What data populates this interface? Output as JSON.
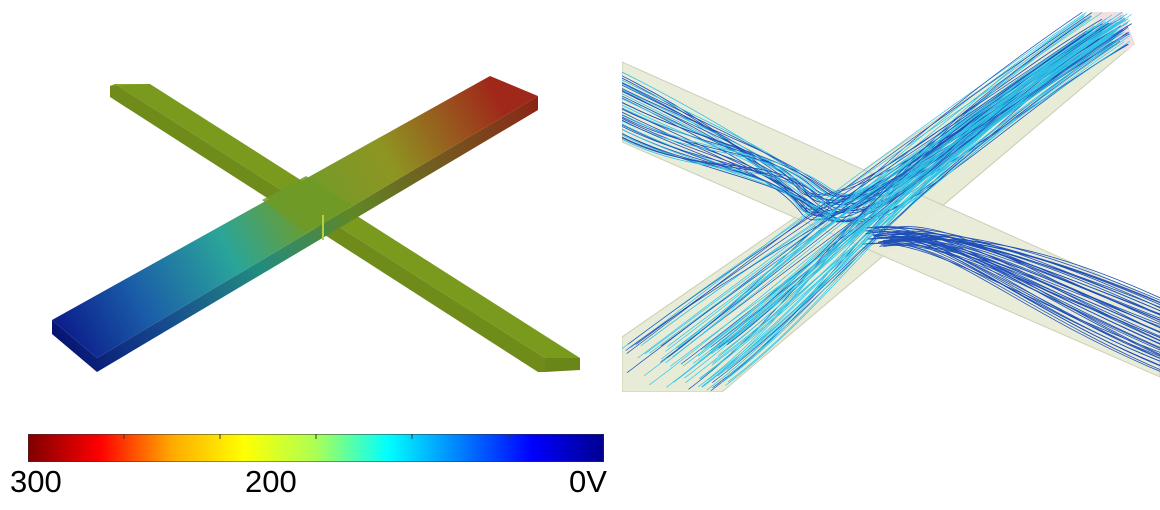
{
  "colorbar": {
    "labels": {
      "max": "300",
      "mid": "200",
      "min": "0V"
    },
    "gradient_colors": [
      "#7f0000",
      "#ff0000",
      "#ffaa00",
      "#ffff00",
      "#aaff55",
      "#00ffff",
      "#0080ff",
      "#0000ff",
      "#00008f"
    ]
  },
  "potential_plot": {
    "colors": {
      "high": "#a0281a",
      "mid": "#7a9a1e",
      "low": "#0a1a8a",
      "teal": "#2aa59a"
    }
  },
  "streamline_plot": {
    "colors": {
      "channel_fill": "#e8ecd6",
      "channel_edge": "#c8ceb4",
      "line_dark": "#1e4fb8",
      "line_light": "#2fc3e6"
    }
  }
}
